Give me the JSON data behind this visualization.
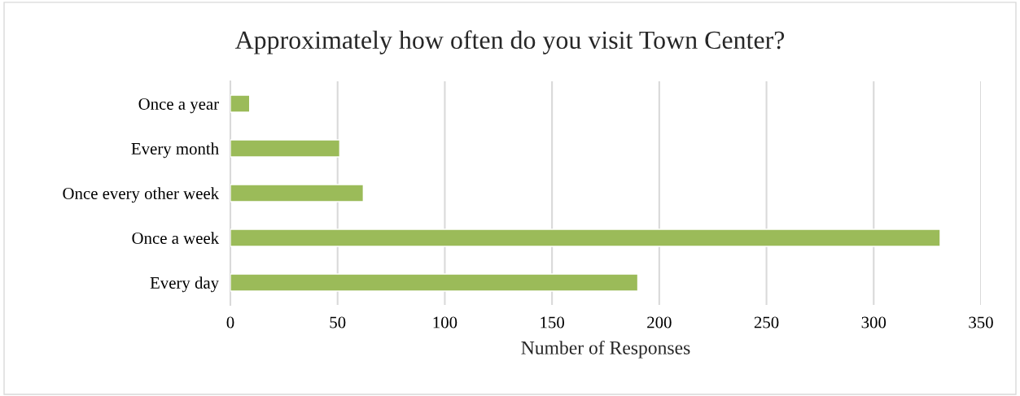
{
  "chart_data": {
    "type": "bar",
    "orientation": "horizontal",
    "title": "Approximately how often do you visit Town Center?",
    "xlabel": "Number of Responses",
    "categories": [
      "Once a year",
      "Every month",
      "Once every other week",
      "Once a week",
      "Every day"
    ],
    "values": [
      9,
      51,
      62,
      331,
      190
    ],
    "color": "#9bbb59",
    "xlim": [
      0,
      350
    ],
    "xticks": [
      0,
      50,
      100,
      150,
      200,
      250,
      300,
      350
    ],
    "grid": "x"
  }
}
